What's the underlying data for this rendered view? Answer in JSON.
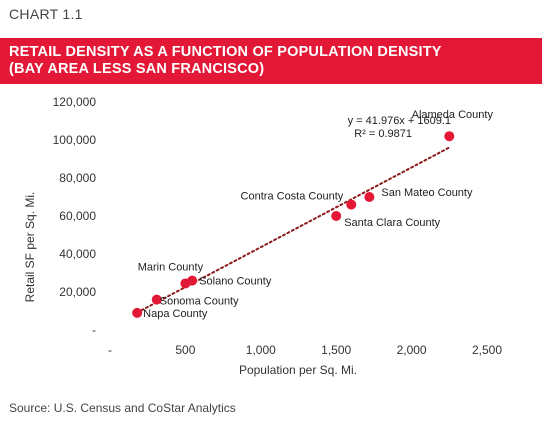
{
  "header": {
    "chart_label": "CHART 1.1",
    "banner_color": "#e31837"
  },
  "chart_data": {
    "type": "scatter",
    "title": "RETAIL DENSITY AS A FUNCTION OF POPULATION DENSITY (BAY AREA LESS SAN FRANCISCO)",
    "title_lines": [
      "RETAIL DENSITY AS A FUNCTION OF POPULATION DENSITY",
      "(BAY AREA LESS SAN FRANCISCO)"
    ],
    "xlabel": "Population per Sq. Mi.",
    "ylabel": "Retail SF per Sq. Mi.",
    "xlim": [
      0,
      2500
    ],
    "ylim": [
      0,
      120000
    ],
    "xticks": [
      0,
      500,
      1000,
      1500,
      2000,
      2500
    ],
    "xtick_labels": [
      "-",
      "500",
      "1,000",
      "1,500",
      "2,000",
      "2,500"
    ],
    "yticks": [
      0,
      20000,
      40000,
      60000,
      80000,
      100000,
      120000
    ],
    "ytick_labels": [
      "-",
      "20,000",
      "40,000",
      "60,000",
      "80,000",
      "100,000",
      "120,000"
    ],
    "grid": false,
    "marker_color": "#e31837",
    "trendline_color": "#8b1a1a",
    "points": [
      {
        "label": "Alameda County",
        "x": 2250,
        "y": 102000
      },
      {
        "label": "San Mateo County",
        "x": 1720,
        "y": 70000
      },
      {
        "label": "Contra Costa County",
        "x": 1600,
        "y": 66000
      },
      {
        "label": "Santa Clara County",
        "x": 1500,
        "y": 60000
      },
      {
        "label": "Marin County",
        "x": 500,
        "y": 24500
      },
      {
        "label": "Solano County",
        "x": 545,
        "y": 26000
      },
      {
        "label": "Sonoma County",
        "x": 310,
        "y": 16000
      },
      {
        "label": "Napa County",
        "x": 180,
        "y": 9000
      }
    ],
    "trendline": {
      "slope": 41.976,
      "intercept": 1609.1,
      "x_range": [
        180,
        2250
      ],
      "equation": "y = 41.976x + 1609.1",
      "r_squared": "R² = 0.9871"
    }
  },
  "footer": {
    "source": "Source: U.S. Census and CoStar Analytics"
  }
}
